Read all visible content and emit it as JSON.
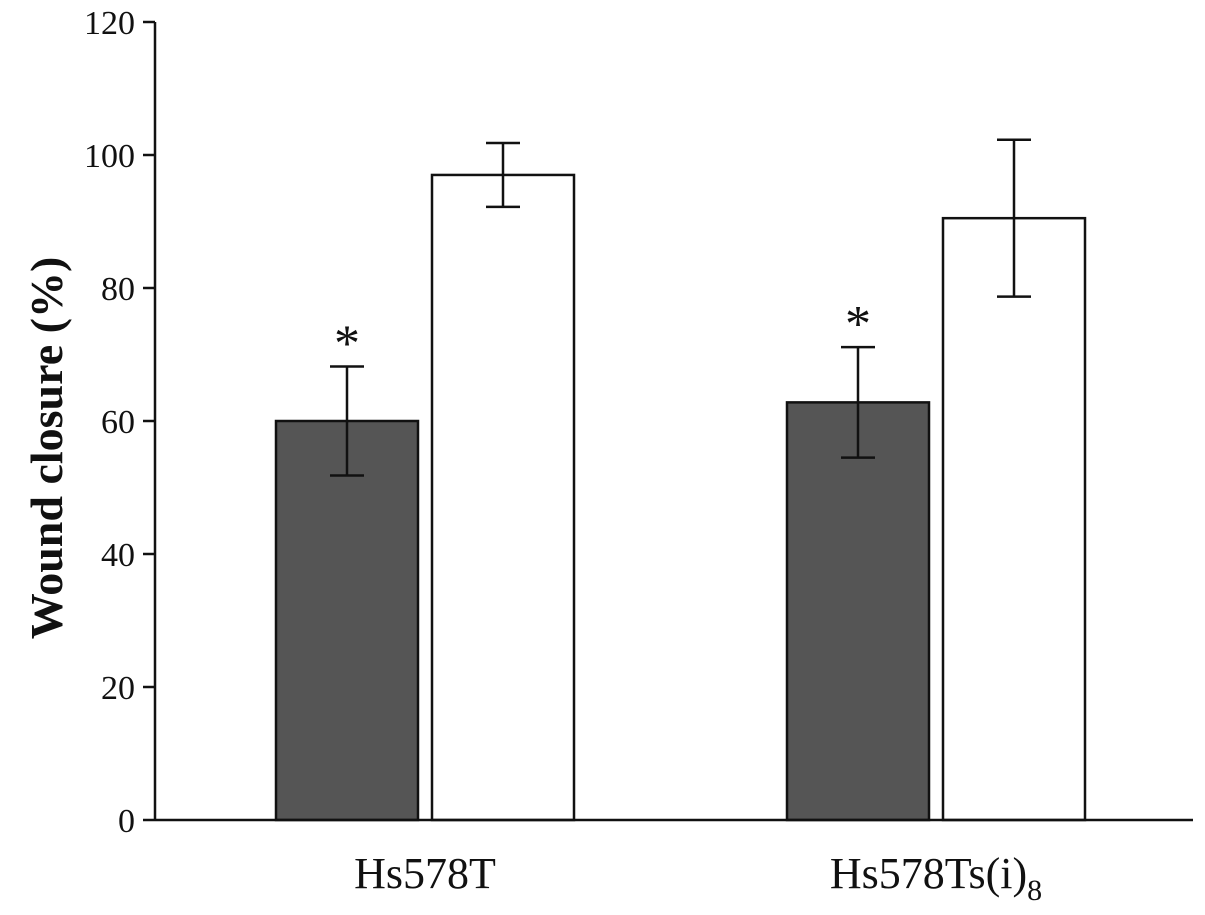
{
  "chart_data": {
    "type": "bar",
    "title": "",
    "xlabel": "",
    "ylabel": "Wound closure (%)",
    "ylim": [
      0,
      120
    ],
    "yticks": [
      0,
      20,
      40,
      60,
      80,
      100,
      120
    ],
    "grid": false,
    "categories": [
      {
        "label": "Hs578T",
        "subscript": ""
      },
      {
        "label": "Hs578Ts(i)",
        "subscript": "8"
      }
    ],
    "series": [
      {
        "fill": "#555555",
        "values": [
          60,
          62.8
        ],
        "error": [
          8.2,
          8.3
        ],
        "annotations": [
          "*",
          "*"
        ]
      },
      {
        "fill": "#ffffff",
        "values": [
          97,
          90.5
        ],
        "error": [
          4.8,
          11.8
        ],
        "annotations": [
          "",
          ""
        ]
      }
    ]
  }
}
